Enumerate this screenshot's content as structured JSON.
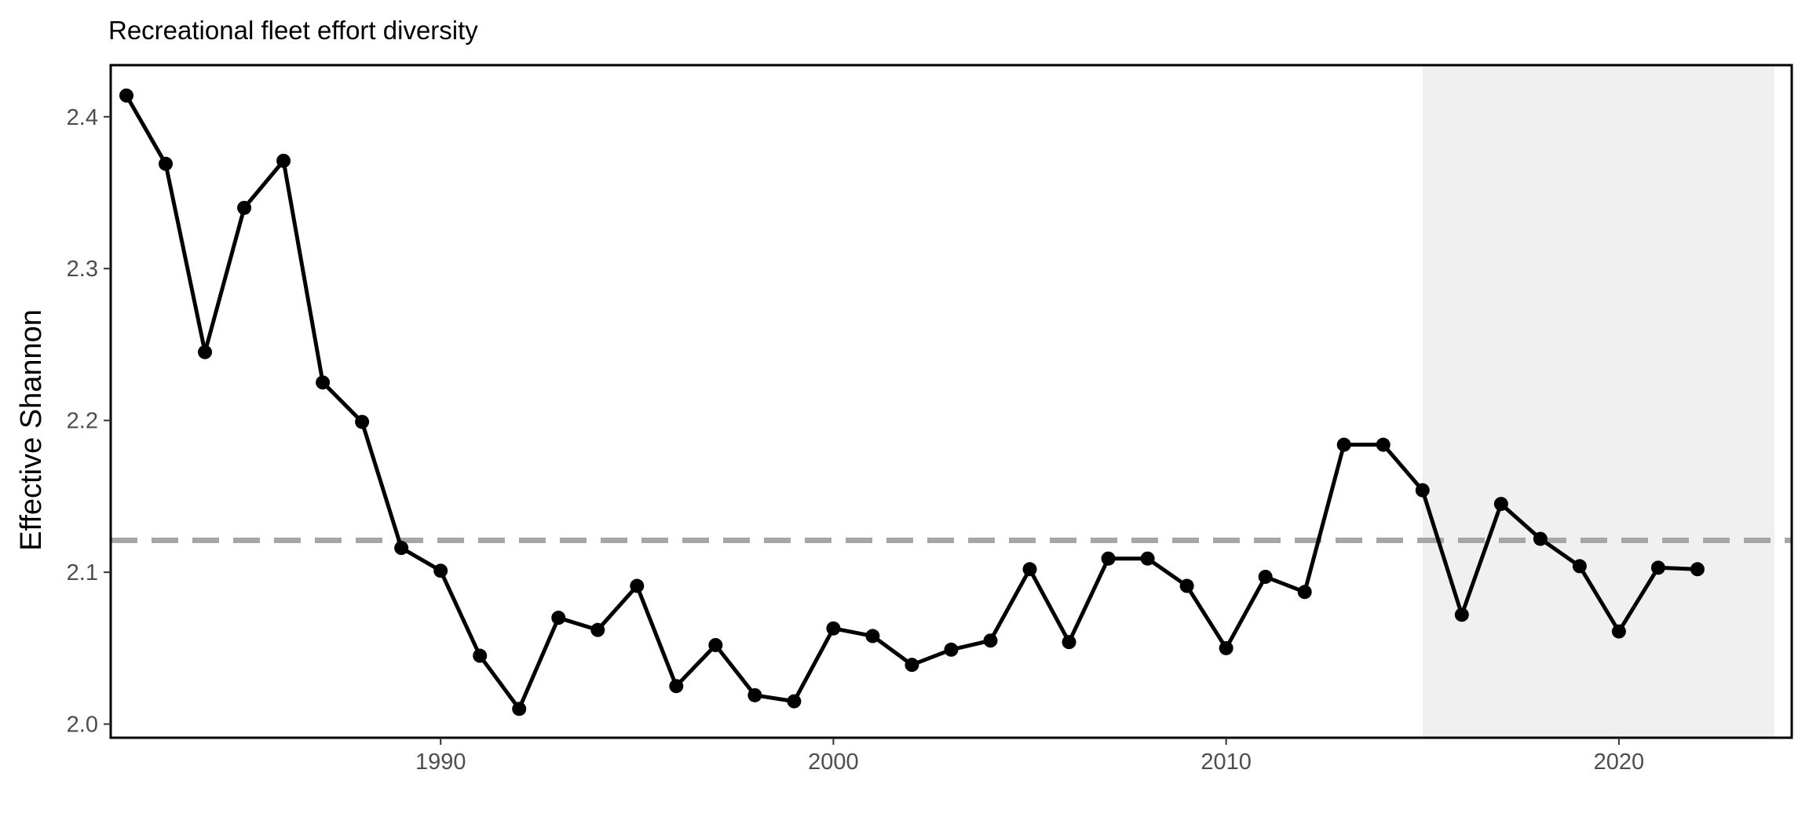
{
  "chart_data": {
    "type": "line",
    "title": "Recreational fleet effort diversity",
    "xlabel": "",
    "ylabel": "Effective Shannon",
    "xlim": [
      1981.6,
      2024.4
    ],
    "ylim": [
      1.991,
      2.434
    ],
    "x_ticks": [
      1990,
      2000,
      2010,
      2020
    ],
    "x_tick_labels": [
      "1990",
      "2000",
      "2010",
      "2020"
    ],
    "y_ticks": [
      2.0,
      2.1,
      2.2,
      2.3,
      2.4
    ],
    "y_tick_labels": [
      "2.0",
      "2.1",
      "2.2",
      "2.3",
      "2.4"
    ],
    "reference_line": {
      "y": 2.121,
      "style": "dashed",
      "color": "#a6a6a6"
    },
    "shaded_region": {
      "x_start": 2015,
      "x_end": 2024.4,
      "color": "#f0f0f0"
    },
    "grid": false,
    "series": [
      {
        "color": "#000000",
        "x": [
          1982,
          1983,
          1984,
          1985,
          1986,
          1987,
          1988,
          1989,
          1990,
          1991,
          1992,
          1993,
          1994,
          1995,
          1996,
          1997,
          1998,
          1999,
          2000,
          2001,
          2002,
          2003,
          2004,
          2005,
          2006,
          2007,
          2008,
          2009,
          2010,
          2011,
          2012,
          2013,
          2014,
          2015,
          2016,
          2017,
          2018,
          2019,
          2020,
          2021,
          2022
        ],
        "values": [
          2.414,
          2.369,
          2.245,
          2.34,
          2.371,
          2.225,
          2.199,
          2.116,
          2.101,
          2.045,
          2.01,
          2.07,
          2.062,
          2.091,
          2.025,
          2.052,
          2.019,
          2.015,
          2.063,
          2.058,
          2.039,
          2.049,
          2.055,
          2.102,
          2.054,
          2.109,
          2.109,
          2.091,
          2.05,
          2.097,
          2.087,
          2.184,
          2.184,
          2.154,
          2.072,
          2.145,
          2.122,
          2.104,
          2.061,
          2.103,
          2.102
        ]
      }
    ]
  }
}
